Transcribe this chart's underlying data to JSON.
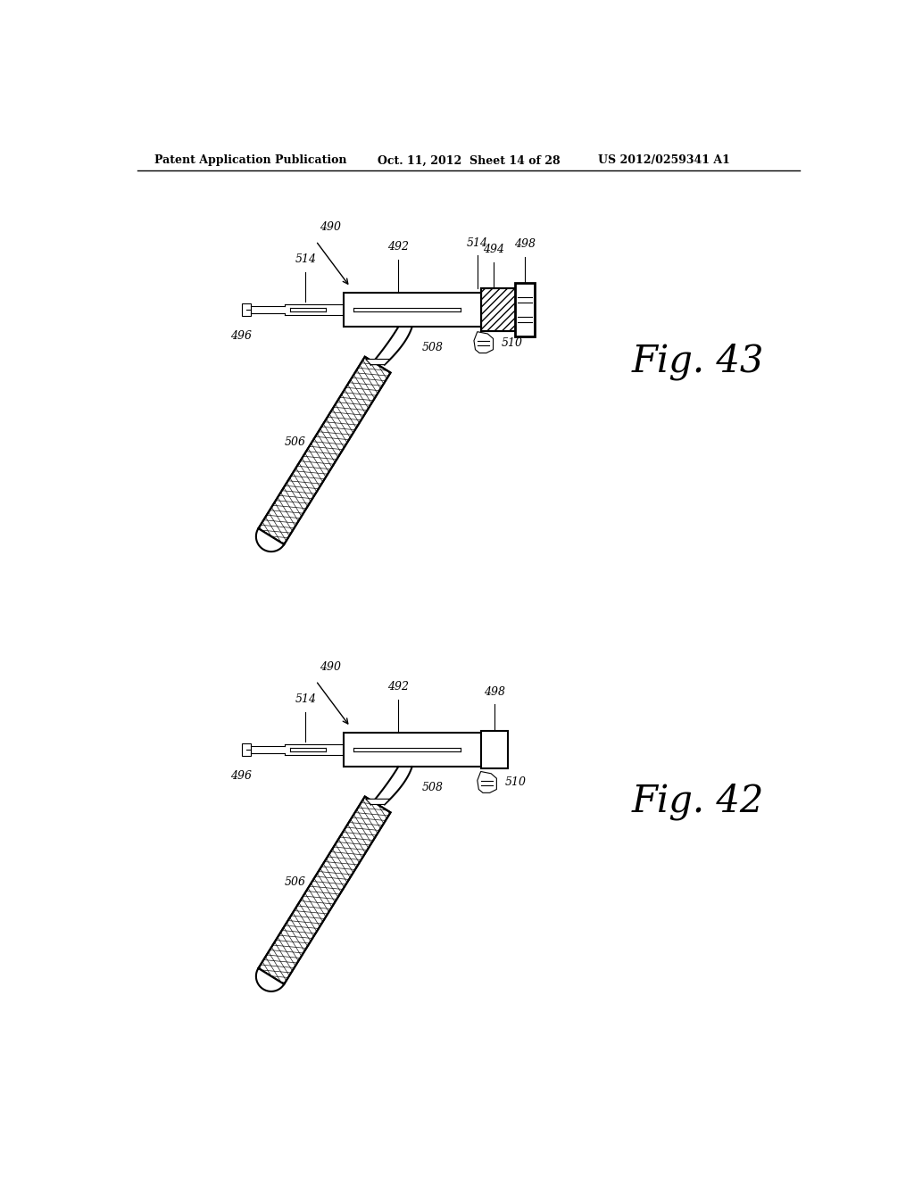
{
  "background_color": "#ffffff",
  "header_left": "Patent Application Publication",
  "header_center": "Oct. 11, 2012  Sheet 14 of 28",
  "header_right": "US 2012/0259341 A1",
  "fig43_label": "Fig. 43",
  "fig42_label": "Fig. 42",
  "line_color": "#000000",
  "gray": "#aaaaaa"
}
